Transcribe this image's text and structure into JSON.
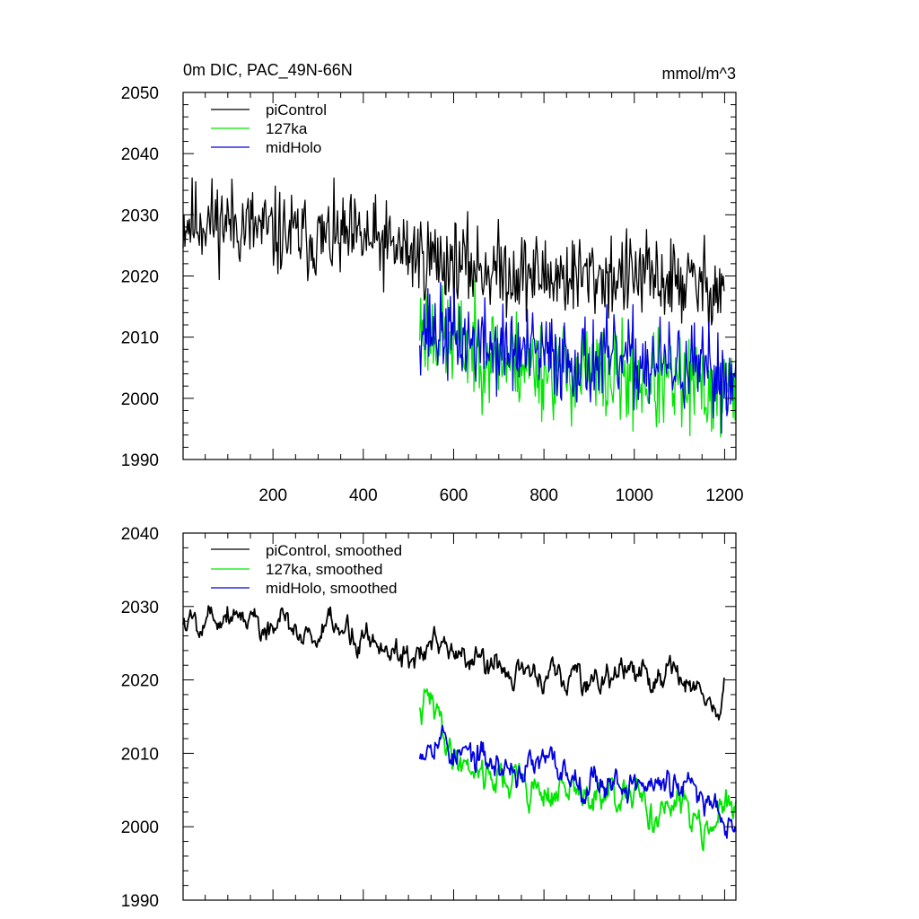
{
  "colors": {
    "piControl": "#000000",
    "127ka": "#00e600",
    "midHolo": "#0000e0"
  },
  "chart_data": [
    {
      "type": "line",
      "title": "0m DIC, PAC_49N-66N",
      "units": "mmol/m^3",
      "xlim": [
        1,
        1225
      ],
      "ylim": [
        1990,
        2050
      ],
      "yticks": [
        "1990",
        "2000",
        "2010",
        "2020",
        "2030",
        "2040",
        "2050"
      ],
      "xticks": [
        "200",
        "400",
        "600",
        "800",
        "1000",
        "1200"
      ],
      "legend": [
        "piControl",
        "127ka",
        "midHolo"
      ],
      "series": [
        {
          "name": "piControl",
          "color_key": "piControl",
          "x_range": [
            1,
            1200
          ],
          "trend": [
            [
              1,
              2029
            ],
            [
              100,
              2029
            ],
            [
              200,
              2027
            ],
            [
              300,
              2026
            ],
            [
              400,
              2026
            ],
            [
              500,
              2024
            ],
            [
              600,
              2022
            ],
            [
              700,
              2021
            ],
            [
              800,
              2020
            ],
            [
              900,
              2020
            ],
            [
              1000,
              2020
            ],
            [
              1100,
              2019
            ],
            [
              1200,
              2018
            ]
          ],
          "noise": 3.5,
          "seed": 11
        },
        {
          "name": "127ka",
          "color_key": "127ka",
          "x_range": [
            525,
            1225
          ],
          "trend": [
            [
              525,
              2012
            ],
            [
              600,
              2009
            ],
            [
              700,
              2007
            ],
            [
              800,
              2005
            ],
            [
              900,
              2004
            ],
            [
              1000,
              2003
            ],
            [
              1100,
              2002
            ],
            [
              1225,
              2001
            ]
          ],
          "noise": 4.0,
          "seed": 23
        },
        {
          "name": "midHolo",
          "color_key": "midHolo",
          "x_range": [
            525,
            1225
          ],
          "trend": [
            [
              525,
              2012
            ],
            [
              600,
              2010
            ],
            [
              700,
              2008
            ],
            [
              800,
              2007
            ],
            [
              900,
              2006
            ],
            [
              1000,
              2006
            ],
            [
              1100,
              2005
            ],
            [
              1225,
              2003
            ]
          ],
          "noise": 3.6,
          "seed": 37
        }
      ]
    },
    {
      "type": "line",
      "title": "",
      "units": "",
      "xlim": [
        1,
        1225
      ],
      "ylim": [
        1990,
        2040
      ],
      "yticks": [
        "1990",
        "2000",
        "2010",
        "2020",
        "2030",
        "2040"
      ],
      "xticks": [],
      "legend": [
        "piControl, smoothed",
        "127ka, smoothed",
        "midHolo, smoothed"
      ],
      "series": [
        {
          "name": "piControl, smoothed",
          "color_key": "piControl",
          "x_range": [
            1,
            1200
          ],
          "trend": [
            [
              1,
              2028
            ],
            [
              100,
              2030
            ],
            [
              200,
              2027
            ],
            [
              300,
              2026
            ],
            [
              400,
              2026
            ],
            [
              500,
              2024
            ],
            [
              600,
              2023
            ],
            [
              700,
              2022
            ],
            [
              800,
              2020
            ],
            [
              900,
              2020
            ],
            [
              1000,
              2021
            ],
            [
              1100,
              2020
            ],
            [
              1150,
              2019
            ],
            [
              1185,
              2015
            ],
            [
              1200,
              2020
            ]
          ],
          "noise": 1.6,
          "seed": 5
        },
        {
          "name": "127ka, smoothed",
          "color_key": "127ka",
          "x_range": [
            525,
            1225
          ],
          "trend": [
            [
              525,
              2015
            ],
            [
              545,
              2017
            ],
            [
              600,
              2010
            ],
            [
              700,
              2007
            ],
            [
              800,
              2005
            ],
            [
              900,
              2004
            ],
            [
              1000,
              2003
            ],
            [
              1100,
              2002
            ],
            [
              1225,
              2002
            ]
          ],
          "noise": 1.9,
          "seed": 41
        },
        {
          "name": "midHolo, smoothed",
          "color_key": "midHolo",
          "x_range": [
            525,
            1225
          ],
          "trend": [
            [
              525,
              2011
            ],
            [
              560,
              2014
            ],
            [
              600,
              2010
            ],
            [
              700,
              2008
            ],
            [
              800,
              2008
            ],
            [
              900,
              2007
            ],
            [
              1000,
              2006
            ],
            [
              1100,
              2005
            ],
            [
              1225,
              2002
            ]
          ],
          "noise": 1.7,
          "seed": 53
        }
      ]
    }
  ]
}
